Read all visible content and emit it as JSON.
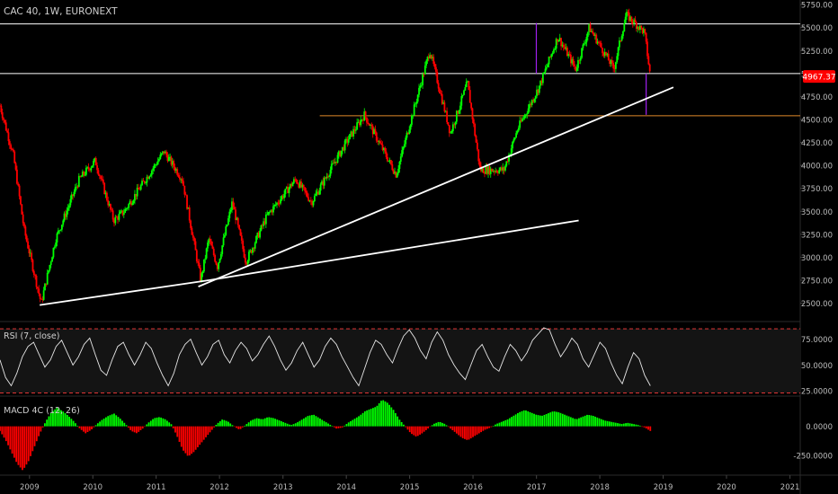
{
  "colors": {
    "background": "#000000",
    "up": "#00ff00",
    "down": "#ff0000",
    "axis_text": "#bdbdbd",
    "price_badge": "#ff0000",
    "white_line": "#ffffff",
    "orange_line": "#e08a2a",
    "purple_line": "#a020f0",
    "rsi_band": "#141414",
    "rsi_dash": "#ff3b3b"
  },
  "header": {
    "symbol": "CAC 40, 1W, EURONEXT"
  },
  "price_badge": {
    "value": "4967.37"
  },
  "rsi": {
    "label": "RSI (7, close)"
  },
  "macd": {
    "label": "MACD 4C (12, 26)"
  },
  "chart_data": [
    {
      "type": "candlestick",
      "title": "CAC 40, 1W, EURONEXT",
      "x": {
        "type": "date",
        "range": [
          "2008-07-15",
          "2021-03-01"
        ],
        "ticks": [
          "2009",
          "2010",
          "2011",
          "2012",
          "2013",
          "2014",
          "2015",
          "2016",
          "2017",
          "2018",
          "2019",
          "2020",
          "2021"
        ]
      },
      "y": {
        "range": [
          2300,
          5800
        ],
        "ticks": [
          "5750.00",
          "5500.00",
          "5250.00",
          "5000.00",
          "4750.00",
          "4500.00",
          "4250.00",
          "4000.00",
          "3750.00",
          "3500.00",
          "3250.00",
          "3000.00",
          "2750.00",
          "2500.00"
        ]
      },
      "grid": false,
      "series": [
        {
          "points": [
            [
              "2008-07-15",
              4650
            ],
            [
              "2008-10-01",
              4100
            ],
            [
              "2008-12-01",
              3300
            ],
            [
              "2009-03-09",
              2500
            ],
            [
              "2009-06-01",
              3200
            ],
            [
              "2009-10-15",
              3850
            ],
            [
              "2010-01-15",
              4050
            ],
            [
              "2010-05-01",
              3400
            ],
            [
              "2010-07-01",
              3500
            ],
            [
              "2011-02-15",
              4150
            ],
            [
              "2011-06-01",
              3850
            ],
            [
              "2011-09-15",
              2750
            ],
            [
              "2011-10-31",
              3200
            ],
            [
              "2011-12-20",
              2900
            ],
            [
              "2012-03-15",
              3600
            ],
            [
              "2012-06-01",
              2950
            ],
            [
              "2012-10-01",
              3450
            ],
            [
              "2013-03-15",
              3850
            ],
            [
              "2013-06-15",
              3600
            ],
            [
              "2013-12-31",
              4250
            ],
            [
              "2014-04-15",
              4550
            ],
            [
              "2014-10-15",
              3900
            ],
            [
              "2015-04-27",
              5250
            ],
            [
              "2015-08-24",
              4350
            ],
            [
              "2015-11-30",
              4900
            ],
            [
              "2016-02-11",
              3950
            ],
            [
              "2016-06-27",
              3950
            ],
            [
              "2016-09-15",
              4400
            ],
            [
              "2017-01-15",
              4850
            ],
            [
              "2017-05-05",
              5400
            ],
            [
              "2017-08-15",
              5050
            ],
            [
              "2017-11-01",
              5500
            ],
            [
              "2018-03-23",
              5050
            ],
            [
              "2018-06-01",
              5640
            ],
            [
              "2018-09-15",
              5450
            ],
            [
              "2018-10-19",
              4967.37
            ]
          ]
        }
      ],
      "horizontal_levels": [
        {
          "value": 5540,
          "color": "#ffffff"
        },
        {
          "value": 5000,
          "color": "#ffffff"
        },
        {
          "value": 4540,
          "color": "#e08a2a",
          "start": "2013-08-01"
        }
      ],
      "trendlines": [
        {
          "from": [
            "2009-03-01",
            2480
          ],
          "to": [
            "2011-11-01",
            2750
          ]
        },
        {
          "from": [
            "2011-11-01",
            2750
          ],
          "to": [
            "2017-09-01",
            3400
          ]
        },
        {
          "from": [
            "2011-09-01",
            2680
          ],
          "to": [
            "2019-03-01",
            4850
          ]
        }
      ],
      "vertical_markers": [
        {
          "date": "2016-12-31",
          "from": 5550,
          "to": 5000
        },
        {
          "date": "2018-09-25",
          "from": 5000,
          "to": 4550
        }
      ]
    },
    {
      "type": "line",
      "title": "RSI (7, close)",
      "y": {
        "range": [
          20,
          92
        ],
        "ticks": [
          "75.0000",
          "50.0000",
          "25.0000"
        ]
      },
      "bands": {
        "upper": 85,
        "lower": 23
      },
      "series": [
        {
          "name": "RSI",
          "values": [
            55,
            38,
            30,
            42,
            58,
            68,
            72,
            60,
            48,
            55,
            68,
            74,
            62,
            50,
            58,
            70,
            76,
            60,
            45,
            40,
            55,
            68,
            72,
            60,
            50,
            60,
            72,
            66,
            52,
            40,
            30,
            42,
            60,
            70,
            75,
            62,
            50,
            58,
            70,
            74,
            60,
            52,
            64,
            72,
            66,
            54,
            60,
            70,
            78,
            68,
            55,
            45,
            52,
            64,
            72,
            60,
            48,
            55,
            68,
            76,
            70,
            58,
            48,
            38,
            30,
            46,
            62,
            74,
            70,
            60,
            52,
            66,
            78,
            84,
            76,
            64,
            56,
            72,
            82,
            74,
            60,
            50,
            42,
            36,
            50,
            64,
            70,
            58,
            48,
            44,
            58,
            70,
            64,
            54,
            62,
            74,
            80,
            86,
            84,
            70,
            58,
            66,
            76,
            70,
            56,
            48,
            60,
            72,
            66,
            52,
            40,
            32,
            48,
            62,
            56,
            40,
            30
          ]
        }
      ]
    },
    {
      "type": "bar",
      "title": "MACD 4C (12, 26)",
      "y": {
        "range": [
          -420,
          260
        ],
        "ticks": [
          "0.0000",
          "-250.0000"
        ]
      },
      "series": [
        {
          "name": "MACD",
          "values": [
            -40,
            -120,
            -220,
            -320,
            -380,
            -300,
            -180,
            -60,
            40,
            120,
            160,
            130,
            90,
            40,
            -20,
            -60,
            -30,
            20,
            60,
            90,
            110,
            70,
            20,
            -40,
            -60,
            -20,
            30,
            70,
            80,
            60,
            20,
            -80,
            -200,
            -260,
            -220,
            -160,
            -100,
            -40,
            20,
            60,
            40,
            0,
            -30,
            10,
            50,
            70,
            60,
            80,
            70,
            50,
            30,
            10,
            30,
            60,
            90,
            100,
            70,
            40,
            10,
            -20,
            -10,
            30,
            60,
            90,
            130,
            150,
            170,
            230,
            200,
            140,
            60,
            0,
            -60,
            -90,
            -60,
            -20,
            20,
            40,
            20,
            -20,
            -60,
            -100,
            -120,
            -90,
            -60,
            -30,
            -10,
            20,
            40,
            60,
            90,
            120,
            140,
            120,
            100,
            90,
            110,
            130,
            120,
            100,
            80,
            60,
            80,
            100,
            90,
            70,
            50,
            40,
            30,
            20,
            30,
            20,
            10,
            -10,
            -40
          ]
        }
      ]
    }
  ]
}
